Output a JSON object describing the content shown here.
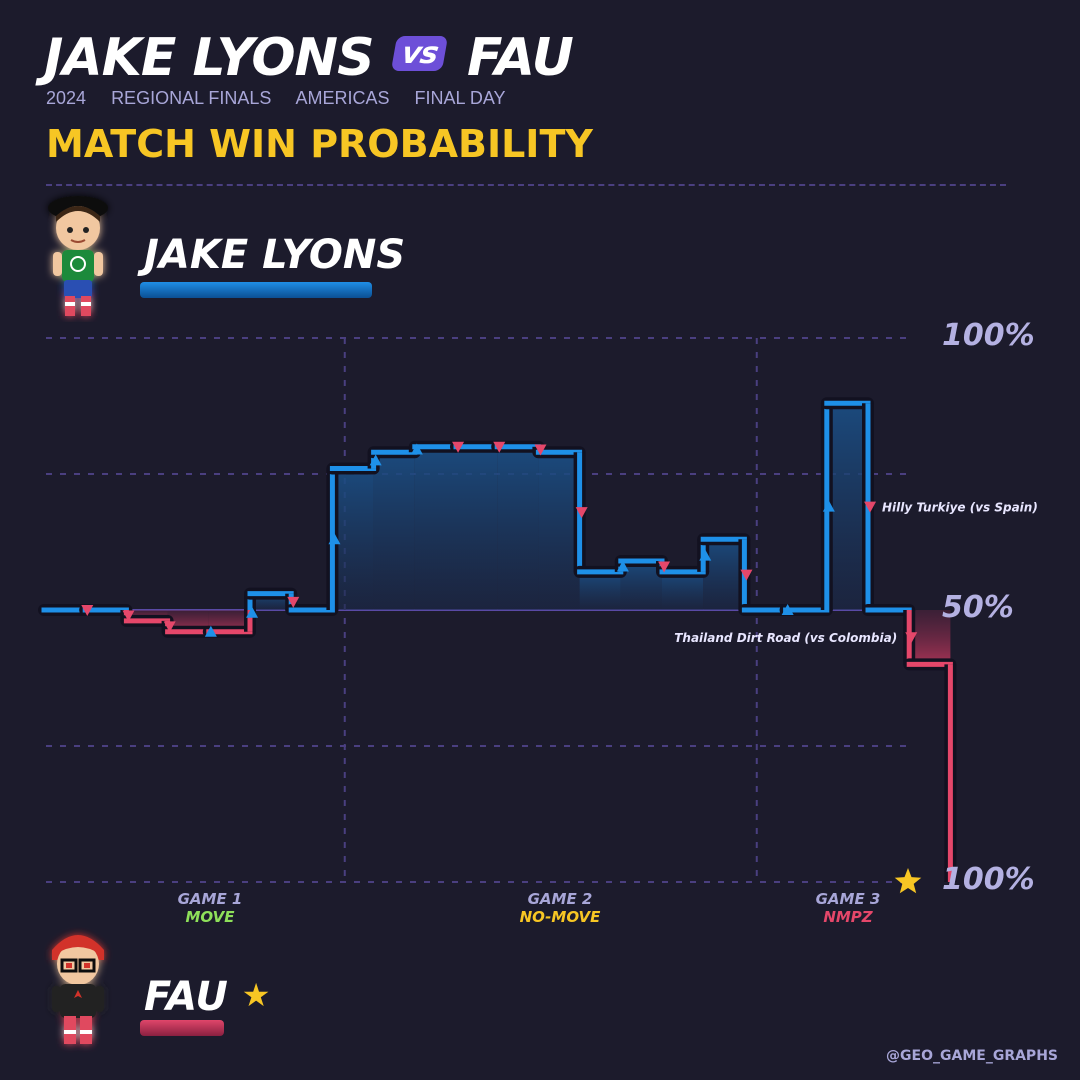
{
  "header": {
    "player1": "JAKE LYONS",
    "vs": "vs",
    "player2": "FAU",
    "meta": [
      "2024",
      "REGIONAL FINALS",
      "AMERICAS",
      "FINAL DAY"
    ],
    "subtitle": "MATCH WIN PROBABILITY"
  },
  "players": {
    "top": {
      "name": "JAKE LYONS",
      "color": "#1e90e8"
    },
    "bottom": {
      "name": "FAU",
      "winner_star": "★",
      "color": "#e5476a"
    }
  },
  "axis_labels": {
    "top": "100%",
    "mid": "50%",
    "bottom": "100%"
  },
  "games": [
    {
      "label": "GAME 1",
      "mode": "MOVE",
      "color": "#8ee05a"
    },
    {
      "label": "GAME 2",
      "mode": "NO-MOVE",
      "color": "#f7c624"
    },
    {
      "label": "GAME 3",
      "mode": "NMPZ",
      "color": "#e5476a"
    }
  ],
  "annotations": [
    {
      "text": "Hilly Turkiye (vs Spain)",
      "round": 20
    },
    {
      "text": "Thailand Dirt Road (vs Colombia)",
      "round": 21
    }
  ],
  "footer": "@GEO_GAME_GRAPHS",
  "chart_data": {
    "type": "line",
    "title": "MATCH WIN PROBABILITY",
    "y_meaning": "Jake Lyons match win probability (%)",
    "ylim": [
      0,
      100
    ],
    "step": true,
    "x": [
      0,
      1,
      2,
      3,
      4,
      5,
      6,
      7,
      8,
      9,
      10,
      11,
      12,
      13,
      14,
      15,
      16,
      17,
      18,
      19,
      20,
      21,
      22
    ],
    "values": [
      50,
      50,
      48,
      46,
      46,
      53,
      50,
      76,
      79,
      80,
      80,
      80,
      79,
      57,
      59,
      57,
      63,
      50,
      50,
      88,
      50,
      40,
      0
    ],
    "round_outcome": [
      null,
      "red",
      "red",
      "red",
      "blue",
      "blue",
      "red",
      "blue",
      "blue",
      "blue",
      "red",
      "red",
      "red",
      "red",
      "blue",
      "red",
      "blue",
      "red",
      "blue",
      "blue",
      "red",
      "red",
      null
    ],
    "game_boundaries_x": [
      7.3,
      17.3
    ],
    "grid": true,
    "winner": "FAU"
  }
}
